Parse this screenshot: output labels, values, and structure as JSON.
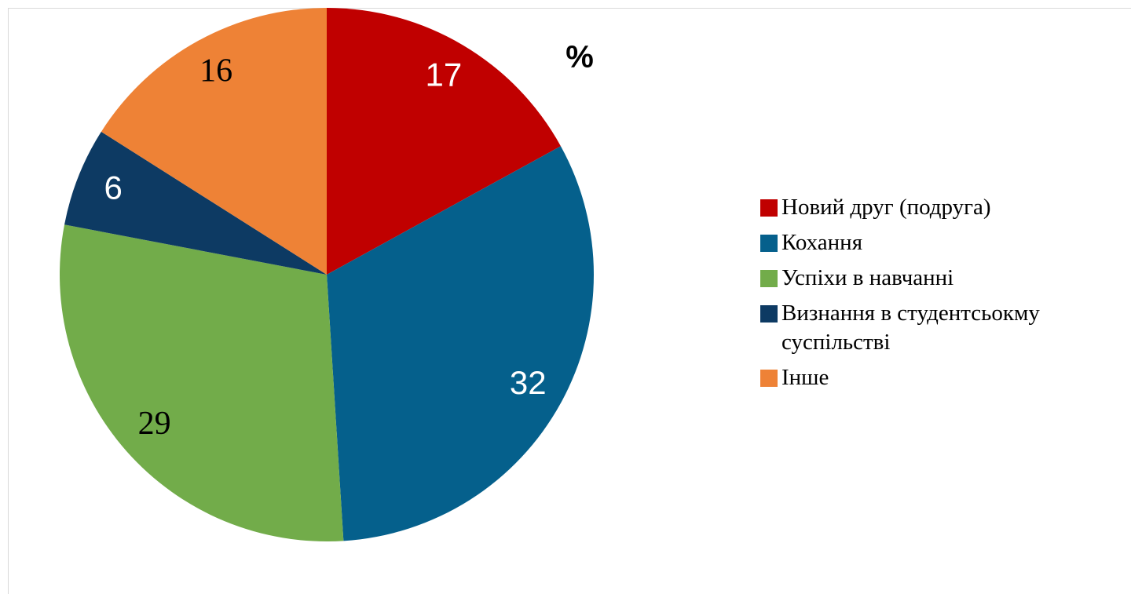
{
  "chart_data": {
    "type": "pie",
    "title": "%",
    "categories": [
      "Новий друг (подруга)",
      "Кохання",
      "Успіхи в навчанні",
      "Визнання в студентсьокму суспільстві",
      "Інше"
    ],
    "values": [
      17,
      32,
      29,
      6,
      16
    ],
    "colors": [
      "#c00000",
      "#05608c",
      "#72ac4a",
      "#0d3a63",
      "#ee8236"
    ],
    "label_colors": [
      "#ffffff",
      "#ffffff",
      "#000000",
      "#ffffff",
      "#000000"
    ],
    "legend": "right"
  }
}
